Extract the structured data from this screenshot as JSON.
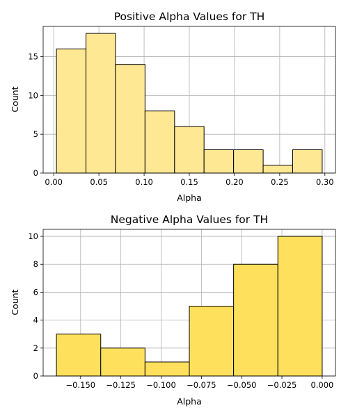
{
  "chart_data": [
    {
      "type": "bar",
      "title": "Positive Alpha Values for TH",
      "xlabel": "Alpha",
      "ylabel": "Count",
      "color": "#ffe894",
      "bin_edges": [
        0.003,
        0.0357,
        0.0683,
        0.101,
        0.1337,
        0.1663,
        0.199,
        0.2317,
        0.2643,
        0.297
      ],
      "values": [
        16,
        18,
        14,
        8,
        6,
        3,
        3,
        1,
        3
      ],
      "xlim": [
        -0.0117,
        0.3117
      ],
      "ylim": [
        0,
        18.9
      ],
      "xticks": [
        0.0,
        0.05,
        0.1,
        0.15,
        0.2,
        0.25,
        0.3
      ],
      "xtick_labels": [
        "0.00",
        "0.05",
        "0.10",
        "0.15",
        "0.20",
        "0.25",
        "0.30"
      ],
      "yticks": [
        0,
        5,
        10,
        15
      ],
      "ytick_labels": [
        "0",
        "5",
        "10",
        "15"
      ],
      "grid": true
    },
    {
      "type": "bar",
      "title": "Negative Alpha Values for TH",
      "xlabel": "Alpha",
      "ylabel": "Count",
      "color": "#ffe05c",
      "bin_edges": [
        -0.165,
        -0.1375,
        -0.11,
        -0.0825,
        -0.055,
        -0.0275,
        0.0
      ],
      "values": [
        3,
        2,
        1,
        5,
        8,
        10
      ],
      "xlim": [
        -0.17325,
        0.00825
      ],
      "ylim": [
        0,
        10.5
      ],
      "xticks": [
        -0.15,
        -0.125,
        -0.1,
        -0.075,
        -0.05,
        -0.025,
        0.0
      ],
      "xtick_labels": [
        "−0.150",
        "−0.125",
        "−0.100",
        "−0.075",
        "−0.050",
        "−0.025",
        "0.000"
      ],
      "yticks": [
        0,
        2,
        4,
        6,
        8,
        10
      ],
      "ytick_labels": [
        "0",
        "2",
        "4",
        "6",
        "8",
        "10"
      ],
      "grid": true
    }
  ]
}
